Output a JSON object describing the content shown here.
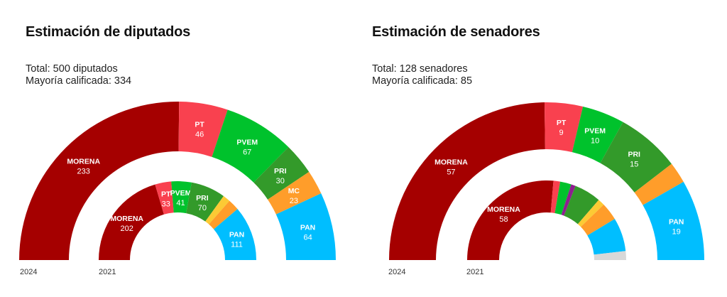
{
  "colors": {
    "MORENA": "#a50000",
    "PT": "#f9414f",
    "PVEM": "#00c22c",
    "PES": "#8e1f8e",
    "PRI": "#339a2a",
    "PRD": "#fcca34",
    "MC": "#ff9d2a",
    "PAN": "#00beff",
    "Otros": "#d8d8d8"
  },
  "chart_data": [
    {
      "type": "pie",
      "subtype": "semicircle-parliament",
      "title": "Estimación de diputados",
      "subtitle_lines": [
        "Total: 500 diputados",
        "Mayoría calificada: 334"
      ],
      "rings": [
        {
          "name": "2024",
          "year_label": "2024",
          "segments": [
            {
              "party": "MORENA",
              "value": 233,
              "label": "MORENA",
              "show": true
            },
            {
              "party": "PT",
              "value": 46,
              "label": "PT",
              "show": true
            },
            {
              "party": "PVEM",
              "value": 67,
              "label": "PVEM",
              "show": true
            },
            {
              "party": "PRI",
              "value": 30,
              "label": "PRI",
              "show": true
            },
            {
              "party": "MC",
              "value": 23,
              "label": "MC",
              "show": true
            },
            {
              "party": "PAN",
              "value": 64,
              "label": "PAN",
              "show": true
            }
          ]
        },
        {
          "name": "2021",
          "year_label": "2021",
          "segments": [
            {
              "party": "MORENA",
              "value": 202,
              "label": "MORENA",
              "show": true
            },
            {
              "party": "PT",
              "value": 33,
              "label": "PT",
              "show": true
            },
            {
              "party": "PVEM",
              "value": 41,
              "label": "PVEM",
              "show": true
            },
            {
              "party": "PRI",
              "value": 70,
              "label": "PRI",
              "show": true
            },
            {
              "party": "PRD",
              "value": 15,
              "label": "PRD",
              "show": false
            },
            {
              "party": "MC",
              "value": 23,
              "label": "MC",
              "show": false
            },
            {
              "party": "PAN",
              "value": 111,
              "label": "PAN",
              "show": true
            }
          ]
        }
      ]
    },
    {
      "type": "pie",
      "subtype": "semicircle-parliament",
      "title": "Estimación de senadores",
      "subtitle_lines": [
        "Total: 128 senadores",
        "Mayoría calificada: 85"
      ],
      "rings": [
        {
          "name": "2024",
          "year_label": "2024",
          "segments": [
            {
              "party": "MORENA",
              "value": 57,
              "label": "MORENA",
              "show": true
            },
            {
              "party": "PT",
              "value": 9,
              "label": "PT",
              "show": true
            },
            {
              "party": "PVEM",
              "value": 10,
              "label": "PVEM",
              "show": true
            },
            {
              "party": "PRI",
              "value": 15,
              "label": "PRI",
              "show": true
            },
            {
              "party": "MC",
              "value": 5,
              "label": "MC",
              "show": false
            },
            {
              "party": "PAN",
              "value": 19,
              "label": "PAN",
              "show": true
            }
          ]
        },
        {
          "name": "2021",
          "year_label": "2021",
          "segments": [
            {
              "party": "MORENA",
              "value": 58,
              "label": "MORENA",
              "show": true
            },
            {
              "party": "PT",
              "value": 3,
              "label": "PT",
              "show": false
            },
            {
              "party": "PVEM",
              "value": 5,
              "label": "PVEM",
              "show": false
            },
            {
              "party": "PES",
              "value": 2,
              "label": "PES",
              "show": false
            },
            {
              "party": "PRI",
              "value": 12,
              "label": "PRI",
              "show": false
            },
            {
              "party": "PRD",
              "value": 3,
              "label": "PRD",
              "show": false
            },
            {
              "party": "MC",
              "value": 8,
              "label": "MC",
              "show": false
            },
            {
              "party": "PAN",
              "value": 15,
              "label": "PAN",
              "show": false
            },
            {
              "party": "Otros",
              "value": 4,
              "label": "Otros",
              "show": false
            }
          ]
        }
      ]
    }
  ]
}
